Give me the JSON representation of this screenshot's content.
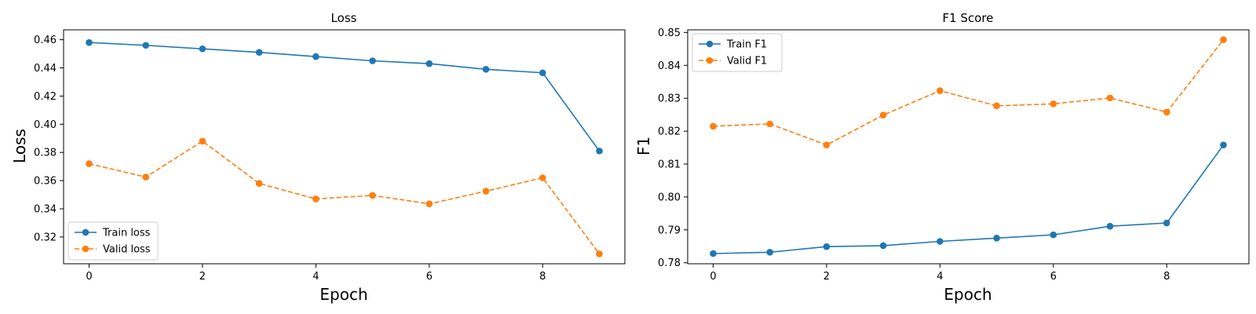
{
  "chart_data": [
    {
      "type": "line",
      "title": "Loss",
      "xlabel": "Epoch",
      "ylabel": "Loss",
      "xlim": [
        -0.45,
        9.45
      ],
      "ylim": [
        0.301,
        0.467
      ],
      "xticks": [
        0,
        2,
        4,
        6,
        8
      ],
      "yticks": [
        0.32,
        0.34,
        0.36,
        0.38,
        0.4,
        0.42,
        0.44,
        0.46
      ],
      "tick_decimals": 2,
      "legend_position": "lower-left",
      "grid": false,
      "x": [
        0,
        1,
        2,
        3,
        4,
        5,
        6,
        7,
        8,
        9
      ],
      "series": [
        {
          "name": "Train loss",
          "color": "#1f77b4",
          "style": "solid",
          "values": [
            0.458,
            0.456,
            0.4535,
            0.451,
            0.448,
            0.445,
            0.443,
            0.439,
            0.4365,
            0.381
          ]
        },
        {
          "name": "Valid loss",
          "color": "#ff7f0e",
          "style": "dashed",
          "values": [
            0.372,
            0.3625,
            0.388,
            0.358,
            0.347,
            0.3495,
            0.3435,
            0.3525,
            0.362,
            0.308
          ]
        }
      ]
    },
    {
      "type": "line",
      "title": "F1 Score",
      "xlabel": "Epoch",
      "ylabel": "F1",
      "xlim": [
        -0.45,
        9.45
      ],
      "ylim": [
        0.7797,
        0.8508
      ],
      "xticks": [
        0,
        2,
        4,
        6,
        8
      ],
      "yticks": [
        0.78,
        0.79,
        0.8,
        0.81,
        0.82,
        0.83,
        0.84,
        0.85
      ],
      "tick_decimals": 2,
      "legend_position": "upper-left",
      "grid": false,
      "x": [
        0,
        1,
        2,
        3,
        4,
        5,
        6,
        7,
        8,
        9
      ],
      "series": [
        {
          "name": "Train F1",
          "color": "#1f77b4",
          "style": "solid",
          "values": [
            0.7828,
            0.7832,
            0.7849,
            0.7852,
            0.7865,
            0.7875,
            0.7885,
            0.7911,
            0.7921,
            0.8158
          ]
        },
        {
          "name": "Valid F1",
          "color": "#ff7f0e",
          "style": "dashed",
          "values": [
            0.8215,
            0.8222,
            0.8158,
            0.8249,
            0.8323,
            0.8277,
            0.8283,
            0.8301,
            0.8258,
            0.8478
          ]
        }
      ]
    }
  ]
}
